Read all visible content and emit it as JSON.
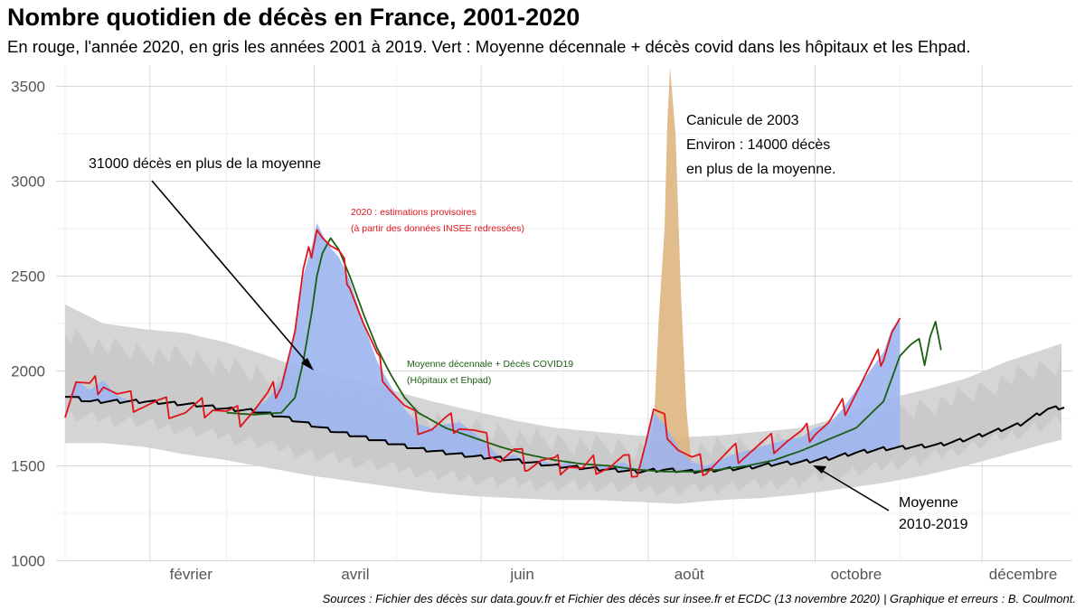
{
  "title": "Nombre quotidien de décès en France, 2001-2020",
  "subtitle": "En rouge, l'année 2020, en gris les années 2001 à 2019. Vert : Moyenne décennale + décès covid dans les hôpitaux et les Ehpad.",
  "caption": "Sources : Fichier des décès sur data.gouv.fr et Fichier des décès sur insee.fr et ECDC (13 novembre 2020) | Graphique et erreurs : B. Coulmont.",
  "colors": {
    "year_2020": "#e0141c",
    "moyenne_covid": "#1a5e12",
    "moyenne": "#000000",
    "excess_fill": "#9db5ef",
    "canicule_fill": "#deb57f",
    "historical_band": "#d3d3d3"
  },
  "annotations": {
    "excess_label": "31000 décès en plus de la moyenne",
    "canicule_line1": "Canicule de 2003",
    "canicule_line2": "Environ : 14000 décès",
    "canicule_line3": "en plus de la moyenne.",
    "estim_line1": "2020 : estimations provisoires",
    "estim_line2": "(à partir des données INSEE redressées)",
    "green_line1": "Moyenne décennale + Décès COVID19",
    "green_line2": "(Hôpitaux et Ehpad)",
    "moyenne_line1": "Moyenne",
    "moyenne_line2": "2010-2019"
  },
  "chart_data": {
    "type": "line",
    "title": "Nombre quotidien de décès en France, 2001-2020",
    "xlabel": "",
    "ylabel": "",
    "x_ticks": [
      "février",
      "avril",
      "juin",
      "août",
      "octobre",
      "décembre"
    ],
    "y_ticks": [
      1000,
      1500,
      2000,
      2500,
      3000,
      3500
    ],
    "ylim": [
      1000,
      3600
    ],
    "x_unit": "day of year",
    "xlim": [
      1,
      366
    ],
    "grid": true,
    "series": [
      {
        "name": "2020",
        "x": [
          1,
          5,
          10,
          15,
          20,
          25,
          30,
          35,
          40,
          45,
          50,
          55,
          60,
          65,
          70,
          75,
          80,
          85,
          88,
          91,
          93,
          95,
          98,
          101,
          105,
          110,
          115,
          120,
          125,
          130,
          135,
          140,
          145,
          150,
          155,
          160,
          165,
          170,
          175,
          180,
          185,
          190,
          195,
          200,
          205,
          210,
          213,
          216,
          220,
          225,
          230,
          235,
          240,
          245,
          250,
          255,
          260,
          265,
          270,
          275,
          280,
          285,
          290,
          295,
          300,
          303,
          306
        ],
        "values": [
          1800,
          1950,
          1900,
          1950,
          1870,
          1840,
          1830,
          1820,
          1800,
          1780,
          1800,
          1820,
          1770,
          1760,
          1800,
          1850,
          1950,
          2200,
          2500,
          2650,
          2780,
          2720,
          2650,
          2600,
          2480,
          2250,
          2050,
          1920,
          1800,
          1720,
          1700,
          1720,
          1730,
          1680,
          1620,
          1540,
          1560,
          1520,
          1530,
          1500,
          1520,
          1470,
          1510,
          1500,
          1520,
          1480,
          1620,
          1780,
          1720,
          1600,
          1520,
          1500,
          1530,
          1560,
          1580,
          1600,
          1620,
          1640,
          1650,
          1700,
          1720,
          1800,
          1900,
          2000,
          2100,
          2220,
          2270
        ]
      },
      {
        "name": "Moyenne décennale + Décès COVID19",
        "x": [
          60,
          70,
          80,
          85,
          88,
          91,
          93,
          95,
          98,
          101,
          105,
          110,
          115,
          120,
          125,
          130,
          140,
          150,
          160,
          170,
          180,
          190,
          200,
          210,
          220,
          230,
          240,
          250,
          260,
          270,
          280,
          290,
          300,
          306,
          310,
          313,
          315,
          317,
          319,
          321
        ],
        "values": [
          1780,
          1770,
          1780,
          1860,
          2050,
          2300,
          2500,
          2620,
          2700,
          2640,
          2500,
          2300,
          2120,
          1980,
          1860,
          1780,
          1700,
          1650,
          1600,
          1560,
          1530,
          1510,
          1500,
          1480,
          1470,
          1470,
          1480,
          1500,
          1530,
          1580,
          1640,
          1700,
          1840,
          2080,
          2140,
          2170,
          2030,
          2180,
          2260,
          2110
        ]
      },
      {
        "name": "Moyenne 2010-2019",
        "x": [
          1,
          10,
          20,
          30,
          40,
          50,
          60,
          70,
          80,
          90,
          100,
          110,
          120,
          130,
          140,
          150,
          160,
          170,
          180,
          190,
          200,
          210,
          220,
          230,
          240,
          250,
          260,
          270,
          280,
          290,
          300,
          310,
          320,
          330,
          340,
          350,
          360,
          366
        ],
        "values": [
          1870,
          1840,
          1840,
          1840,
          1830,
          1820,
          1800,
          1790,
          1760,
          1720,
          1680,
          1650,
          1620,
          1590,
          1570,
          1550,
          1540,
          1520,
          1500,
          1490,
          1480,
          1470,
          1480,
          1470,
          1480,
          1490,
          1510,
          1520,
          1540,
          1570,
          1590,
          1600,
          1610,
          1640,
          1680,
          1720,
          1800,
          1810
        ]
      }
    ],
    "bands": [
      {
        "x": [
          1,
          15,
          30,
          45,
          60,
          75,
          90,
          105,
          120,
          135,
          150,
          165,
          180,
          195,
          210,
          225,
          240,
          255,
          270,
          285,
          300,
          315,
          330,
          345,
          360,
          366
        ],
        "low": [
          1620,
          1620,
          1600,
          1560,
          1530,
          1490,
          1450,
          1420,
          1390,
          1360,
          1340,
          1330,
          1320,
          1320,
          1310,
          1300,
          1320,
          1330,
          1350,
          1380,
          1410,
          1450,
          1500,
          1560,
          1620,
          1640
        ],
        "high": [
          2350,
          2250,
          2220,
          2200,
          2150,
          2080,
          2000,
          1960,
          1900,
          1840,
          1790,
          1740,
          1700,
          1680,
          1660,
          1650,
          1660,
          1680,
          1700,
          1760,
          1850,
          1900,
          1960,
          2050,
          2120,
          2150
        ]
      }
    ],
    "canicule_2003": {
      "x": [
        212,
        216,
        218,
        220,
        221,
        222,
        224,
        226,
        228,
        230
      ],
      "values": [
        1480,
        1700,
        2300,
        2750,
        3300,
        3600,
        3250,
        2400,
        1800,
        1480
      ]
    },
    "excess_2020_spring_label": "31000 décès en plus de la moyenne",
    "canicule_label": "Canicule de 2003"
  }
}
